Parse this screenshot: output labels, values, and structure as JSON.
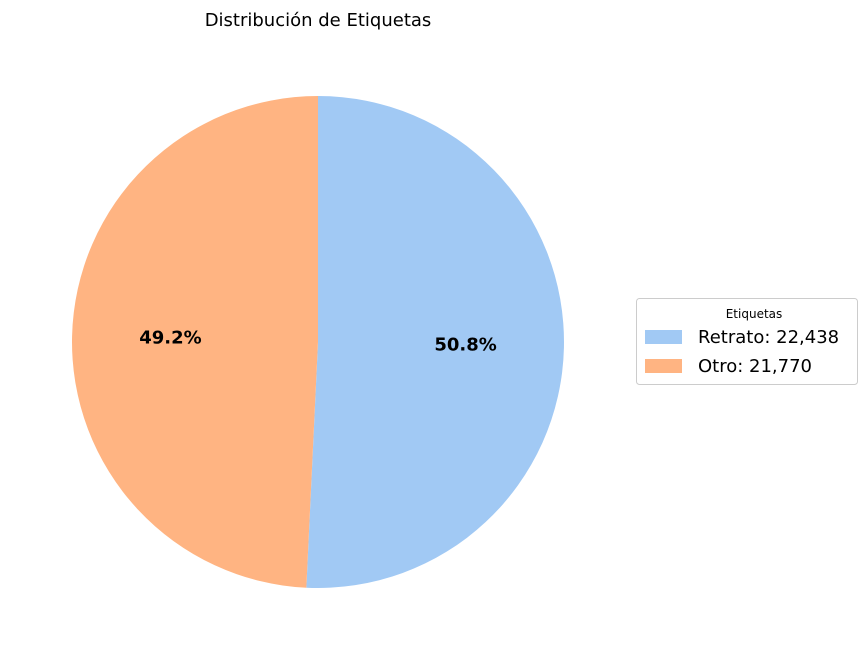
{
  "chart_data": {
    "type": "pie",
    "title": "Distribución de Etiquetas",
    "start_angle_deg": 90,
    "direction": "clockwise",
    "slices": [
      {
        "label": "Retrato",
        "value": 22438,
        "percent_label": "50.8%",
        "legend_label": "Retrato: 22,438",
        "color": "#a1c9f4"
      },
      {
        "label": "Otro",
        "value": 21770,
        "percent_label": "49.2%",
        "legend_label": "Otro: 21,770",
        "color": "#ffb482"
      }
    ],
    "legend": {
      "title": "Etiquetas",
      "placement": "right"
    }
  }
}
